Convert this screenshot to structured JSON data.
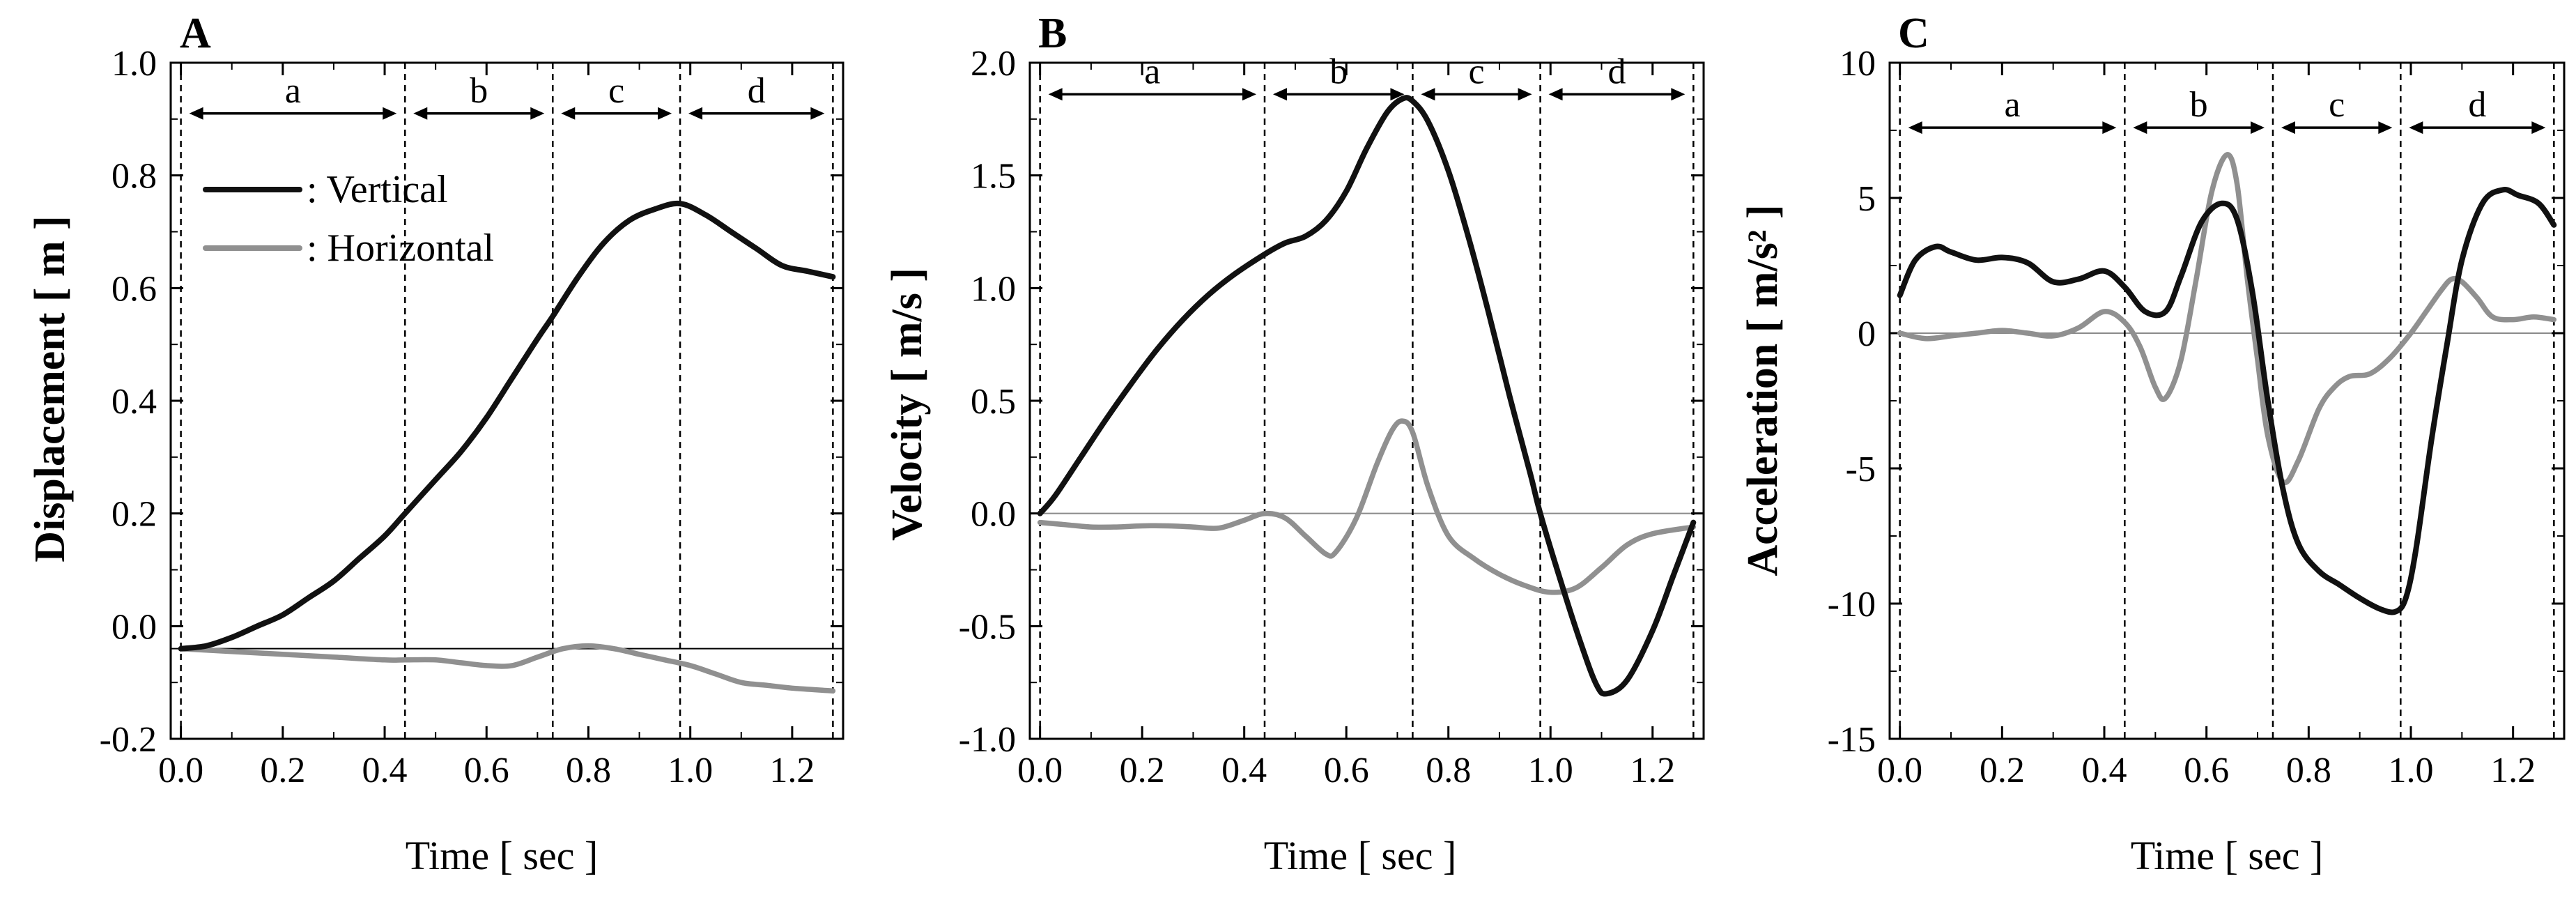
{
  "chart_data": [
    {
      "panel": "A",
      "type": "line",
      "xlabel": "Time [ sec ]",
      "ylabel": "Displacement [ m ]",
      "xlim": [
        -0.02,
        1.3
      ],
      "ylim": [
        -0.2,
        1.0
      ],
      "xticks": [
        0.0,
        0.2,
        0.4,
        0.6,
        0.8,
        1.0,
        1.2
      ],
      "xtick_labels": [
        "0.0",
        "0.2",
        "0.4",
        "0.6",
        "0.8",
        "1.0",
        "1.2"
      ],
      "yticks": [
        -0.2,
        0.0,
        0.2,
        0.4,
        0.6,
        0.8,
        1.0
      ],
      "ytick_labels": [
        "-0.2",
        "0.0",
        "0.2",
        "0.4",
        "0.6",
        "0.8",
        "1.0"
      ],
      "minor_xticks": [
        0.1,
        0.3,
        0.5,
        0.7,
        0.9,
        1.1
      ],
      "minor_yticks": [
        -0.1,
        0.1,
        0.3,
        0.5,
        0.7,
        0.9
      ],
      "phase_boundaries": [
        0.0,
        0.44,
        0.73,
        0.98,
        1.28
      ],
      "phase_labels": [
        "a",
        "b",
        "c",
        "d"
      ],
      "phase_arrow_y": 0.91,
      "zero_line": -0.04,
      "legend": [
        "Vertical",
        "Horizontal"
      ],
      "legend_prefix": ":",
      "series": [
        {
          "name": "Vertical",
          "color": "#111111",
          "x": [
            0.0,
            0.05,
            0.1,
            0.15,
            0.2,
            0.25,
            0.3,
            0.35,
            0.4,
            0.44,
            0.5,
            0.55,
            0.6,
            0.65,
            0.7,
            0.73,
            0.78,
            0.83,
            0.88,
            0.93,
            0.98,
            1.03,
            1.08,
            1.13,
            1.18,
            1.23,
            1.28
          ],
          "y": [
            -0.04,
            -0.035,
            -0.02,
            0.0,
            0.02,
            0.05,
            0.08,
            0.12,
            0.16,
            0.2,
            0.26,
            0.31,
            0.37,
            0.44,
            0.51,
            0.55,
            0.62,
            0.68,
            0.72,
            0.74,
            0.75,
            0.73,
            0.7,
            0.67,
            0.64,
            0.63,
            0.62
          ]
        },
        {
          "name": "Horizontal",
          "color": "#909090",
          "x": [
            0.0,
            0.1,
            0.2,
            0.3,
            0.4,
            0.44,
            0.5,
            0.55,
            0.6,
            0.65,
            0.7,
            0.75,
            0.8,
            0.85,
            0.9,
            0.95,
            1.0,
            1.05,
            1.1,
            1.15,
            1.2,
            1.28
          ],
          "y": [
            -0.04,
            -0.045,
            -0.05,
            -0.055,
            -0.06,
            -0.06,
            -0.06,
            -0.065,
            -0.07,
            -0.07,
            -0.055,
            -0.04,
            -0.035,
            -0.04,
            -0.05,
            -0.06,
            -0.07,
            -0.085,
            -0.1,
            -0.105,
            -0.11,
            -0.115
          ]
        }
      ]
    },
    {
      "panel": "B",
      "type": "line",
      "xlabel": "Time [ sec ]",
      "ylabel": "Velocity [ m/s ]",
      "xlim": [
        -0.02,
        1.3
      ],
      "ylim": [
        -1.0,
        2.0
      ],
      "xticks": [
        0.0,
        0.2,
        0.4,
        0.6,
        0.8,
        1.0,
        1.2
      ],
      "xtick_labels": [
        "0.0",
        "0.2",
        "0.4",
        "0.6",
        "0.8",
        "1.0",
        "1.2"
      ],
      "yticks": [
        -1.0,
        -0.5,
        0.0,
        0.5,
        1.0,
        1.5,
        2.0
      ],
      "ytick_labels": [
        "-1.0",
        "-0.5",
        "0.0",
        "0.5",
        "1.0",
        "1.5",
        "2.0"
      ],
      "minor_xticks": [
        0.1,
        0.3,
        0.5,
        0.7,
        0.9,
        1.1
      ],
      "minor_yticks": [
        -0.75,
        -0.25,
        0.25,
        0.75,
        1.25,
        1.75
      ],
      "phase_boundaries": [
        0.0,
        0.44,
        0.73,
        0.98,
        1.28
      ],
      "phase_labels": [
        "a",
        "b",
        "c",
        "d"
      ],
      "phase_arrow_y": 1.86,
      "zero_line": 0.0,
      "series": [
        {
          "name": "Vertical",
          "color": "#111111",
          "x": [
            0.0,
            0.03,
            0.08,
            0.13,
            0.18,
            0.23,
            0.28,
            0.33,
            0.38,
            0.44,
            0.48,
            0.52,
            0.56,
            0.6,
            0.64,
            0.68,
            0.71,
            0.73,
            0.76,
            0.8,
            0.84,
            0.88,
            0.92,
            0.96,
            0.98,
            1.02,
            1.06,
            1.09,
            1.11,
            1.15,
            1.2,
            1.24,
            1.28
          ],
          "y": [
            0.0,
            0.08,
            0.25,
            0.42,
            0.58,
            0.73,
            0.86,
            0.97,
            1.06,
            1.15,
            1.2,
            1.23,
            1.3,
            1.43,
            1.62,
            1.78,
            1.84,
            1.83,
            1.74,
            1.52,
            1.22,
            0.88,
            0.52,
            0.18,
            0.0,
            -0.3,
            -0.58,
            -0.76,
            -0.8,
            -0.74,
            -0.52,
            -0.28,
            -0.04
          ]
        },
        {
          "name": "Horizontal",
          "color": "#909090",
          "x": [
            0.0,
            0.05,
            0.1,
            0.15,
            0.2,
            0.25,
            0.3,
            0.35,
            0.4,
            0.44,
            0.48,
            0.52,
            0.56,
            0.58,
            0.62,
            0.66,
            0.69,
            0.71,
            0.73,
            0.76,
            0.8,
            0.85,
            0.9,
            0.95,
            1.0,
            1.05,
            1.1,
            1.15,
            1.2,
            1.28
          ],
          "y": [
            -0.04,
            -0.05,
            -0.06,
            -0.06,
            -0.055,
            -0.055,
            -0.06,
            -0.065,
            -0.03,
            0.0,
            -0.02,
            -0.1,
            -0.18,
            -0.17,
            -0.02,
            0.22,
            0.37,
            0.41,
            0.36,
            0.12,
            -0.1,
            -0.2,
            -0.27,
            -0.32,
            -0.35,
            -0.33,
            -0.24,
            -0.14,
            -0.09,
            -0.06
          ]
        }
      ]
    },
    {
      "panel": "C",
      "type": "line",
      "xlabel": "Time [ sec ]",
      "ylabel": "Acceleration [ m/s² ]",
      "xlim": [
        -0.02,
        1.3
      ],
      "ylim": [
        -15,
        10
      ],
      "xticks": [
        0.0,
        0.2,
        0.4,
        0.6,
        0.8,
        1.0,
        1.2
      ],
      "xtick_labels": [
        "0.0",
        "0.2",
        "0.4",
        "0.6",
        "0.8",
        "1.0",
        "1.2"
      ],
      "yticks": [
        -15,
        -10,
        -5,
        0,
        5,
        10
      ],
      "ytick_labels": [
        "-15",
        "-10",
        "-5",
        "0",
        "5",
        "10"
      ],
      "minor_xticks": [
        0.1,
        0.3,
        0.5,
        0.7,
        0.9,
        1.1
      ],
      "minor_yticks": [
        -12.5,
        -7.5,
        -2.5,
        2.5,
        7.5
      ],
      "phase_boundaries": [
        0.0,
        0.44,
        0.73,
        0.98,
        1.28
      ],
      "phase_labels": [
        "a",
        "b",
        "c",
        "d"
      ],
      "phase_arrow_y": 7.6,
      "zero_line": 0.0,
      "series": [
        {
          "name": "Vertical",
          "color": "#111111",
          "x": [
            0.0,
            0.03,
            0.07,
            0.1,
            0.15,
            0.2,
            0.25,
            0.3,
            0.35,
            0.4,
            0.44,
            0.48,
            0.52,
            0.55,
            0.59,
            0.63,
            0.66,
            0.69,
            0.72,
            0.75,
            0.78,
            0.82,
            0.86,
            0.9,
            0.94,
            0.97,
            0.99,
            1.01,
            1.04,
            1.07,
            1.1,
            1.14,
            1.18,
            1.21,
            1.25,
            1.28
          ],
          "y": [
            1.4,
            2.7,
            3.2,
            3.0,
            2.7,
            2.8,
            2.6,
            1.9,
            2.0,
            2.3,
            1.7,
            0.8,
            0.8,
            2.1,
            4.1,
            4.8,
            4.2,
            1.5,
            -2.5,
            -5.8,
            -7.8,
            -8.8,
            -9.3,
            -9.8,
            -10.2,
            -10.3,
            -9.8,
            -8.0,
            -4.0,
            -0.5,
            2.7,
            4.8,
            5.3,
            5.1,
            4.8,
            4.0
          ]
        },
        {
          "name": "Horizontal",
          "color": "#909090",
          "x": [
            0.0,
            0.05,
            0.1,
            0.15,
            0.2,
            0.25,
            0.3,
            0.35,
            0.4,
            0.44,
            0.47,
            0.5,
            0.52,
            0.55,
            0.58,
            0.61,
            0.64,
            0.66,
            0.68,
            0.7,
            0.72,
            0.75,
            0.78,
            0.82,
            0.85,
            0.88,
            0.92,
            0.96,
            1.0,
            1.03,
            1.06,
            1.08,
            1.1,
            1.13,
            1.16,
            1.2,
            1.24,
            1.28
          ],
          "y": [
            0.0,
            -0.2,
            -0.1,
            0.0,
            0.1,
            0.0,
            -0.1,
            0.2,
            0.8,
            0.4,
            -0.5,
            -2.0,
            -2.4,
            -1.0,
            2.0,
            5.2,
            6.6,
            5.5,
            2.0,
            -1.0,
            -3.8,
            -5.5,
            -4.7,
            -2.8,
            -2.0,
            -1.6,
            -1.5,
            -0.9,
            0.0,
            0.8,
            1.6,
            2.0,
            1.9,
            1.3,
            0.6,
            0.5,
            0.6,
            0.5
          ]
        }
      ]
    }
  ]
}
